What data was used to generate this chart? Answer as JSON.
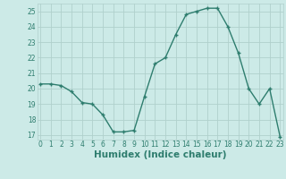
{
  "x": [
    0,
    1,
    2,
    3,
    4,
    5,
    6,
    7,
    8,
    9,
    10,
    11,
    12,
    13,
    14,
    15,
    16,
    17,
    18,
    19,
    20,
    21,
    22,
    23
  ],
  "y": [
    20.3,
    20.3,
    20.2,
    19.8,
    19.1,
    19.0,
    18.3,
    17.2,
    17.2,
    17.3,
    19.5,
    21.6,
    22.0,
    23.5,
    24.8,
    25.0,
    25.2,
    25.2,
    24.0,
    22.3,
    20.0,
    19.0,
    20.0,
    16.9
  ],
  "line_color": "#2e7d6e",
  "marker": "+",
  "marker_size": 3,
  "line_width": 1.0,
  "xlabel": "Humidex (Indice chaleur)",
  "ylim": [
    16.7,
    25.5
  ],
  "yticks": [
    17,
    18,
    19,
    20,
    21,
    22,
    23,
    24,
    25
  ],
  "xticks": [
    0,
    1,
    2,
    3,
    4,
    5,
    6,
    7,
    8,
    9,
    10,
    11,
    12,
    13,
    14,
    15,
    16,
    17,
    18,
    19,
    20,
    21,
    22,
    23
  ],
  "xlim": [
    -0.3,
    23.3
  ],
  "bg_color": "#cceae7",
  "grid_color": "#b0d0cc",
  "tick_fontsize": 5.5,
  "xlabel_fontsize": 7.5,
  "xlabel_bold": true
}
